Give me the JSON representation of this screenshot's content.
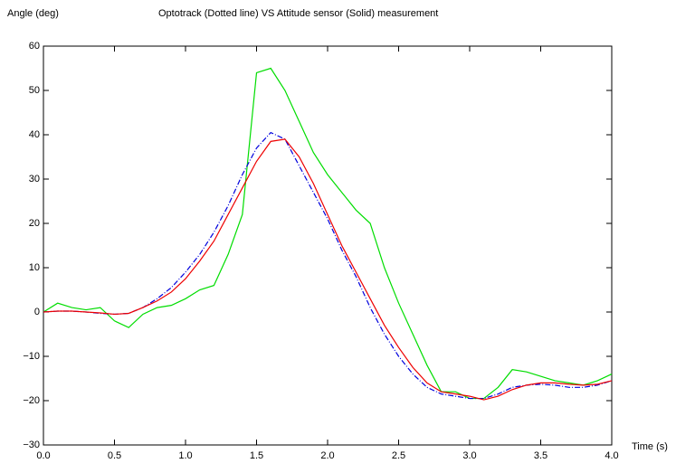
{
  "chart_data": {
    "type": "line",
    "title": "Optotrack (Dotted line) VS Attitude sensor (Solid) measurement",
    "ylabel": "Angle (deg)",
    "xlabel": "Time (s)",
    "x": [
      0,
      0.1,
      0.2,
      0.3,
      0.4,
      0.5,
      0.6,
      0.7,
      0.8,
      0.9,
      1.0,
      1.1,
      1.2,
      1.3,
      1.4,
      1.5,
      1.6,
      1.7,
      1.8,
      1.9,
      2.0,
      2.1,
      2.2,
      2.3,
      2.4,
      2.5,
      2.6,
      2.7,
      2.8,
      2.9,
      3.0,
      3.1,
      3.2,
      3.3,
      3.4,
      3.5,
      3.6,
      3.7,
      3.8,
      3.9,
      4.0
    ],
    "series": [
      {
        "color": "#00dd00",
        "style": "solid",
        "values": [
          0,
          2,
          1,
          0.5,
          1,
          -2,
          -3.5,
          -0.5,
          1,
          1.5,
          3,
          5,
          6,
          13,
          22,
          54,
          55,
          50,
          43,
          36,
          31,
          27,
          23,
          20,
          10,
          2,
          -5,
          -12,
          -18,
          -18,
          -19.5,
          -19.5,
          -17,
          -13,
          -13.5,
          -14.5,
          -15.5,
          -16,
          -16.5,
          -15.5,
          -14
        ]
      },
      {
        "color": "#0000dd",
        "style": "dashdot",
        "values": [
          0,
          0.2,
          0.2,
          0,
          -0.3,
          -0.5,
          -0.3,
          1,
          3,
          5.5,
          9,
          13,
          18,
          24,
          31,
          37,
          40.5,
          39,
          33,
          27,
          21,
          14,
          8,
          1,
          -5,
          -10,
          -14,
          -17,
          -18.5,
          -19,
          -19.5,
          -19.5,
          -18.5,
          -17,
          -16.5,
          -16.3,
          -16.5,
          -17,
          -17,
          -16.5,
          -15.5
        ]
      },
      {
        "color": "#ee0000",
        "style": "solid",
        "values": [
          0,
          0.2,
          0.2,
          0,
          -0.2,
          -0.5,
          -0.3,
          1,
          2.5,
          4.5,
          7.5,
          11.5,
          16,
          22,
          28,
          34,
          38.5,
          39,
          35,
          29,
          22,
          15,
          9,
          3,
          -3,
          -8,
          -12.5,
          -16,
          -18,
          -18.5,
          -19,
          -19.8,
          -19,
          -17.5,
          -16.5,
          -16,
          -16,
          -16.3,
          -16.5,
          -16.3,
          -15.5
        ]
      }
    ],
    "xlim": [
      0,
      4
    ],
    "ylim": [
      -30,
      60
    ],
    "xticks": [
      {
        "value": 0,
        "label": "0.0"
      },
      0.5,
      {
        "value": 1,
        "label": "1.0"
      },
      1.5,
      {
        "value": 2,
        "label": "2.0"
      },
      2.5,
      {
        "value": 3,
        "label": "3.0"
      },
      3.5,
      {
        "value": 4,
        "label": "4.0"
      }
    ],
    "yticks": [
      {
        "value": -30,
        "label": "−30"
      },
      {
        "value": -20,
        "label": "−20"
      },
      {
        "value": -10,
        "label": "−10"
      },
      0,
      10,
      20,
      30,
      40,
      50,
      60
    ]
  }
}
